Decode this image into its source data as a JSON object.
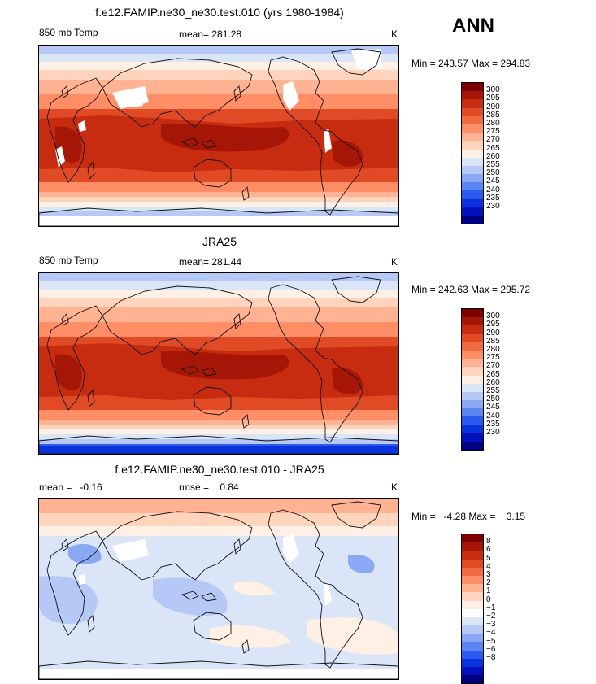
{
  "season": "ANN",
  "colors": {
    "abs_scale": [
      "#000080",
      "#0011bb",
      "#0a33dd",
      "#2a5bee",
      "#5a85f2",
      "#8aa8f4",
      "#b5c8f6",
      "#dae6f8",
      "#fff0e6",
      "#ffd4bd",
      "#ffb393",
      "#ff8d66",
      "#f06a42",
      "#e04a24",
      "#c82c10",
      "#a51606",
      "#7d0000"
    ],
    "diff_scale": [
      "#000080",
      "#0011bb",
      "#0a33dd",
      "#2a5bee",
      "#5a85f2",
      "#8aa8f4",
      "#b5c8f6",
      "#dae6f8",
      "#ffffff",
      "#fff0e6",
      "#ffd4bd",
      "#ffb393",
      "#ff8d66",
      "#f06a42",
      "#e04a24",
      "#c82c10",
      "#a51606",
      "#7d0000"
    ]
  },
  "panels": [
    {
      "title": "f.e12.FAMIP.ne30_ne30.test.010 (yrs 1980-1984)",
      "left": "850 mb Temp",
      "mid": "mean= 281.28",
      "right": "K",
      "minmax": "Min = 243.57 Max = 294.83",
      "labels": [
        "300",
        "295",
        "290",
        "285",
        "280",
        "275",
        "270",
        "265",
        "260",
        "255",
        "250",
        "245",
        "240",
        "235",
        "230"
      ]
    },
    {
      "title": "JRA25",
      "left": "850 mb Temp",
      "mid": "mean= 281.44",
      "right": "K",
      "minmax": "Min = 242.63 Max = 295.72",
      "labels": [
        "300",
        "295",
        "290",
        "285",
        "280",
        "275",
        "270",
        "265",
        "260",
        "255",
        "250",
        "245",
        "240",
        "235",
        "230"
      ]
    },
    {
      "title": "f.e12.FAMIP.ne30_ne30.test.010 - JRA25",
      "left": "mean =   -0.16",
      "mid": "rmse =    0.84",
      "right": "K",
      "minmax": "Min =   -4.28 Max =    3.15",
      "labels": [
        "8",
        "6",
        "5",
        "4",
        "3",
        "2",
        "1",
        "0",
        "−1",
        "−2",
        "−3",
        "−4",
        "−5",
        "−6",
        "−8"
      ]
    }
  ]
}
